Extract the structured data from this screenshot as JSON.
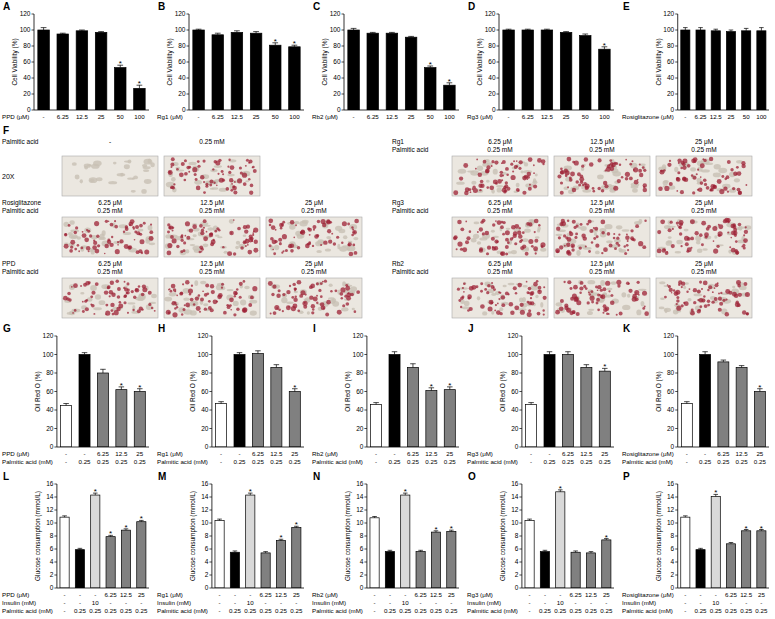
{
  "chart_data": [
    {
      "type": "bar",
      "panel": "A",
      "ylabel": "Cell Viability (%)",
      "xlabel": "PPD (μM)",
      "categories": [
        "-",
        "6.25",
        "12.5",
        "25",
        "50",
        "100"
      ],
      "values": [
        100,
        95,
        99,
        97,
        53,
        27
      ],
      "errors": [
        3,
        1,
        1,
        1,
        3,
        4
      ],
      "significance": [
        null,
        null,
        null,
        null,
        "*",
        "*"
      ],
      "color": "#000000",
      "ylim": [
        0,
        120
      ],
      "yticks": [
        0,
        20,
        40,
        60,
        80,
        100,
        120
      ]
    },
    {
      "type": "bar",
      "panel": "B",
      "ylabel": "Cell Viability (%)",
      "xlabel": "Rg1 (μM)",
      "categories": [
        "-",
        "6.25",
        "12.5",
        "25",
        "50",
        "100"
      ],
      "values": [
        100,
        94,
        97,
        96,
        81,
        79
      ],
      "errors": [
        1,
        2,
        2,
        2,
        3,
        2
      ],
      "significance": [
        null,
        null,
        null,
        null,
        "*",
        "*"
      ],
      "color": "#000000",
      "ylim": [
        0,
        120
      ],
      "yticks": [
        0,
        20,
        40,
        60,
        80,
        100,
        120
      ]
    },
    {
      "type": "bar",
      "panel": "C",
      "ylabel": "Cell Viability (%)",
      "xlabel": "Rb2 (μM)",
      "categories": [
        "-",
        "6.25",
        "12.5",
        "25",
        "50",
        "100"
      ],
      "values": [
        100,
        96,
        96,
        91,
        53,
        31
      ],
      "errors": [
        2,
        1,
        1,
        1,
        2,
        3
      ],
      "significance": [
        null,
        null,
        null,
        null,
        "*",
        "*"
      ],
      "color": "#000000",
      "ylim": [
        0,
        120
      ],
      "yticks": [
        0,
        20,
        40,
        60,
        80,
        100,
        120
      ]
    },
    {
      "type": "bar",
      "panel": "D",
      "ylabel": "Cell Viability (%)",
      "xlabel": "Rg3 (μM)",
      "categories": [
        "-",
        "6.25",
        "12.5",
        "25",
        "50",
        "100"
      ],
      "values": [
        100,
        100,
        100,
        97,
        93,
        76
      ],
      "errors": [
        1,
        1,
        1,
        1,
        2,
        3
      ],
      "significance": [
        null,
        null,
        null,
        null,
        null,
        "*"
      ],
      "color": "#000000",
      "ylim": [
        0,
        120
      ],
      "yticks": [
        0,
        20,
        40,
        60,
        80,
        100,
        120
      ]
    },
    {
      "type": "bar",
      "panel": "E",
      "ylabel": "Cell Viability (%)",
      "xlabel": "Rosiglitazone (μM)",
      "categories": [
        "-",
        "6.25",
        "12.5",
        "25",
        "50",
        "100"
      ],
      "values": [
        100,
        100,
        99,
        98,
        99,
        99
      ],
      "errors": [
        3,
        3,
        2,
        2,
        3,
        4
      ],
      "color": "#000000",
      "ylim": [
        0,
        120
      ],
      "yticks": [
        0,
        20,
        40,
        60,
        80,
        100,
        120
      ]
    },
    {
      "type": "bar",
      "panel": "G",
      "ylabel": "Oil Red O (%)",
      "xlabel": "PPD (μM)",
      "categories": [
        "-",
        "-",
        "6.25",
        "12.5",
        "25"
      ],
      "x_rows": [
        {
          "label": "Palmitic acid (mM)",
          "cells": [
            "-",
            "0.25",
            "0.25",
            "0.25",
            "0.25"
          ]
        }
      ],
      "values": [
        45,
        100,
        80,
        62,
        60
      ],
      "errors": [
        2,
        2,
        4,
        3,
        3
      ],
      "significance": [
        null,
        null,
        null,
        "*",
        "*"
      ],
      "colors": [
        "#ffffff",
        "#000000",
        "#808080",
        "#808080",
        "#808080"
      ],
      "ylim": [
        0,
        120
      ],
      "yticks": [
        0,
        20,
        40,
        60,
        80,
        100,
        120
      ]
    },
    {
      "type": "bar",
      "panel": "H",
      "ylabel": "Oil Red O (%)",
      "xlabel": "Rg1 (μM)",
      "categories": [
        "-",
        "-",
        "6.25",
        "12.5",
        "25"
      ],
      "x_rows": [
        {
          "label": "Palmitic acid (mM)",
          "cells": [
            "-",
            "0.25",
            "0.25",
            "0.25",
            "0.25"
          ]
        }
      ],
      "values": [
        47,
        100,
        101,
        86,
        60
      ],
      "errors": [
        2,
        2,
        3,
        3,
        3
      ],
      "significance": [
        null,
        null,
        null,
        null,
        "*"
      ],
      "colors": [
        "#ffffff",
        "#000000",
        "#808080",
        "#808080",
        "#808080"
      ],
      "ylim": [
        0,
        120
      ],
      "yticks": [
        0,
        20,
        40,
        60,
        80,
        100,
        120
      ]
    },
    {
      "type": "bar",
      "panel": "I",
      "ylabel": "Oil Red O (%)",
      "xlabel": "Rb2 (μM)",
      "categories": [
        "-",
        "-",
        "6.25",
        "12.5",
        "25"
      ],
      "x_rows": [
        {
          "label": "Palmitic acid (mM)",
          "cells": [
            "-",
            "0.25",
            "0.25",
            "0.25",
            "0.25"
          ]
        }
      ],
      "values": [
        46,
        100,
        86,
        61,
        62
      ],
      "errors": [
        2,
        3,
        4,
        3,
        3
      ],
      "significance": [
        null,
        null,
        null,
        "*",
        "*"
      ],
      "colors": [
        "#ffffff",
        "#000000",
        "#808080",
        "#808080",
        "#808080"
      ],
      "ylim": [
        0,
        120
      ],
      "yticks": [
        0,
        20,
        40,
        60,
        80,
        100,
        120
      ]
    },
    {
      "type": "bar",
      "panel": "J",
      "ylabel": "Oil Red O (%)",
      "xlabel": "Rg3 (μM)",
      "categories": [
        "-",
        "-",
        "6.25",
        "12.5",
        "25"
      ],
      "x_rows": [
        {
          "label": "Palmitic acid (mM)",
          "cells": [
            "-",
            "0.25",
            "0.25",
            "0.25",
            "0.25"
          ]
        }
      ],
      "values": [
        46,
        100,
        100,
        86,
        82
      ],
      "errors": [
        2,
        3,
        3,
        3,
        3
      ],
      "significance": [
        null,
        null,
        null,
        null,
        "*"
      ],
      "colors": [
        "#ffffff",
        "#000000",
        "#808080",
        "#808080",
        "#808080"
      ],
      "ylim": [
        0,
        120
      ],
      "yticks": [
        0,
        20,
        40,
        60,
        80,
        100,
        120
      ]
    },
    {
      "type": "bar",
      "panel": "K",
      "ylabel": "Oil Red O (%)",
      "xlabel": "Rosiglitazone (μM)",
      "categories": [
        "-",
        "-",
        "6.25",
        "12.5",
        "25"
      ],
      "x_rows": [
        {
          "label": "Palmitic acid (mM)",
          "cells": [
            "-",
            "0.25",
            "0.25",
            "0.25",
            "0.25"
          ]
        }
      ],
      "values": [
        47,
        100,
        92,
        86,
        60
      ],
      "errors": [
        2,
        3,
        2,
        2,
        3
      ],
      "significance": [
        null,
        null,
        null,
        null,
        "*"
      ],
      "colors": [
        "#ffffff",
        "#000000",
        "#808080",
        "#808080",
        "#808080"
      ],
      "ylim": [
        0,
        120
      ],
      "yticks": [
        0,
        20,
        40,
        60,
        80,
        100,
        120
      ]
    },
    {
      "type": "bar",
      "panel": "L",
      "ylabel": "Glucose consumption (mmol/L)",
      "xlabel": "PPD (μM)",
      "categories": [
        "-",
        "-",
        "-",
        "6.25",
        "12.5",
        "25"
      ],
      "x_rows": [
        {
          "label": "Insulin (mM)",
          "cells": [
            "-",
            "-",
            "10",
            "-",
            "-",
            "-"
          ]
        },
        {
          "label": "Palmitic acid (mM)",
          "cells": [
            "-",
            "0.25",
            "0.25",
            "0.25",
            "0.25",
            "0.25"
          ]
        }
      ],
      "values": [
        10.9,
        5.9,
        14.3,
        7.9,
        8.9,
        10.2
      ],
      "errors": [
        0.2,
        0.2,
        0.3,
        0.2,
        0.2,
        0.2
      ],
      "significance": [
        null,
        null,
        "*",
        "*",
        "*",
        "*"
      ],
      "colors": [
        "#ffffff",
        "#000000",
        "#d9d9d9",
        "#808080",
        "#808080",
        "#808080"
      ],
      "ylim": [
        0,
        16
      ],
      "yticks": [
        0,
        2,
        4,
        6,
        8,
        10,
        12,
        14,
        16
      ]
    },
    {
      "type": "bar",
      "panel": "M",
      "ylabel": "Glucose consumption (mmol/L)",
      "xlabel": "Rg1 (μM)",
      "categories": [
        "-",
        "-",
        "-",
        "6.25",
        "12.5",
        "25"
      ],
      "x_rows": [
        {
          "label": "Insulin (mM)",
          "cells": [
            "-",
            "-",
            "10",
            "-",
            "-",
            "-"
          ]
        },
        {
          "label": "Palmitic acid (mM)",
          "cells": [
            "-",
            "0.25",
            "0.25",
            "0.25",
            "0.25",
            "0.25"
          ]
        }
      ],
      "values": [
        10.4,
        5.5,
        14.3,
        5.4,
        7.3,
        9.3
      ],
      "errors": [
        0.2,
        0.2,
        0.3,
        0.2,
        0.2,
        0.2
      ],
      "significance": [
        null,
        null,
        "*",
        null,
        "*",
        "*"
      ],
      "colors": [
        "#ffffff",
        "#000000",
        "#d9d9d9",
        "#808080",
        "#808080",
        "#808080"
      ],
      "ylim": [
        0,
        16
      ],
      "yticks": [
        0,
        2,
        4,
        6,
        8,
        10,
        12,
        14,
        16
      ]
    },
    {
      "type": "bar",
      "panel": "N",
      "ylabel": "Glucose consumption (mmol/L)",
      "xlabel": "Rb2 (μM)",
      "categories": [
        "-",
        "-",
        "-",
        "6.25",
        "12.5",
        "25"
      ],
      "x_rows": [
        {
          "label": "Insulin (mM)",
          "cells": [
            "-",
            "-",
            "10",
            "-",
            "-",
            "-"
          ]
        },
        {
          "label": "Palmitic acid (mM)",
          "cells": [
            "-",
            "0.25",
            "0.25",
            "0.25",
            "0.25",
            "0.25"
          ]
        }
      ],
      "values": [
        10.8,
        5.6,
        14.3,
        5.6,
        8.6,
        8.7
      ],
      "errors": [
        0.2,
        0.2,
        0.3,
        0.2,
        0.2,
        0.2
      ],
      "significance": [
        null,
        null,
        "*",
        null,
        "*",
        "*"
      ],
      "colors": [
        "#ffffff",
        "#000000",
        "#d9d9d9",
        "#808080",
        "#808080",
        "#808080"
      ],
      "ylim": [
        0,
        16
      ],
      "yticks": [
        0,
        2,
        4,
        6,
        8,
        10,
        12,
        14,
        16
      ]
    },
    {
      "type": "bar",
      "panel": "O",
      "ylabel": "Glucose consumption (mmol/L)",
      "xlabel": "Rg3 (μM)",
      "categories": [
        "-",
        "-",
        "-",
        "6.25",
        "12.5",
        "25"
      ],
      "x_rows": [
        {
          "label": "Insulin (mM)",
          "cells": [
            "-",
            "-",
            "10",
            "-",
            "-",
            "-"
          ]
        },
        {
          "label": "Palmitic acid (mM)",
          "cells": [
            "-",
            "0.25",
            "0.25",
            "0.25",
            "0.25",
            "0.25"
          ]
        }
      ],
      "values": [
        10.4,
        5.6,
        14.8,
        5.5,
        5.4,
        7.4
      ],
      "errors": [
        0.2,
        0.2,
        0.3,
        0.2,
        0.2,
        0.2
      ],
      "significance": [
        null,
        null,
        "*",
        null,
        null,
        "*"
      ],
      "colors": [
        "#ffffff",
        "#000000",
        "#d9d9d9",
        "#808080",
        "#808080",
        "#808080"
      ],
      "ylim": [
        0,
        16
      ],
      "yticks": [
        0,
        2,
        4,
        6,
        8,
        10,
        12,
        14,
        16
      ]
    },
    {
      "type": "bar",
      "panel": "P",
      "ylabel": "Glucose consumption (mmol/L)",
      "xlabel": "Rosiglitazone (μM)",
      "categories": [
        "-",
        "-",
        "-",
        "6.25",
        "12.5",
        "25"
      ],
      "x_rows": [
        {
          "label": "Insulin (mM)",
          "cells": [
            "-",
            "-",
            "10",
            "-",
            "-",
            "-"
          ]
        },
        {
          "label": "Palmitic acid (mM)",
          "cells": [
            "-",
            "0.25",
            "0.25",
            "0.25",
            "0.25",
            "0.25"
          ]
        }
      ],
      "values": [
        10.9,
        5.9,
        14.1,
        6.8,
        8.8,
        8.8
      ],
      "errors": [
        0.2,
        0.2,
        0.3,
        0.2,
        0.2,
        0.2
      ],
      "significance": [
        null,
        null,
        "*",
        null,
        "*",
        "*"
      ],
      "colors": [
        "#ffffff",
        "#000000",
        "#d9d9d9",
        "#808080",
        "#808080",
        "#808080"
      ],
      "ylim": [
        0,
        16
      ],
      "yticks": [
        0,
        2,
        4,
        6,
        8,
        10,
        12,
        14,
        16
      ]
    }
  ],
  "image_panel": {
    "panel": "F",
    "magnification": "20X",
    "rows": [
      {
        "labels": [
          "Palmitic acid"
        ],
        "cells": [
          [
            "-"
          ],
          [
            "0.25 mM"
          ]
        ]
      },
      {
        "labels": [
          "Rosiglitazone",
          "Palmitic acid"
        ],
        "cells": [
          [
            "6.25 μM",
            "0.25 mM"
          ],
          [
            "12.5 μM",
            "0.25 mM"
          ],
          [
            "25 μM",
            "0.25 mM"
          ]
        ]
      },
      {
        "labels": [
          "PPD",
          "Palmitic acid"
        ],
        "cells": [
          [
            "6.25 μM",
            "0.25 mM"
          ],
          [
            "12.5 μM",
            "0.25 mM"
          ],
          [
            "25 μM",
            "0.25 mM"
          ]
        ]
      },
      {
        "labels": [
          "Rg1",
          "Palmitic acid"
        ],
        "cells": [
          [
            "6.25 μM",
            "0.25 mM"
          ],
          [
            "12.5 μM",
            "0.25 mM"
          ],
          [
            "25 μM",
            "0.25 mM"
          ]
        ]
      },
      {
        "labels": [
          "Rg3",
          "Palmitic acid"
        ],
        "cells": [
          [
            "6.25 μM",
            "0.25 mM"
          ],
          [
            "12.5 μM",
            "0.25 mM"
          ],
          [
            "25 μM",
            "0.25 mM"
          ]
        ]
      },
      {
        "labels": [
          "Rb2",
          "Palmitic acid"
        ],
        "cells": [
          [
            "6.25 μM",
            "0.25 mM"
          ],
          [
            "12.5 μM",
            "0.25 mM"
          ],
          [
            "25 μM",
            "0.25 mM"
          ]
        ]
      }
    ]
  }
}
